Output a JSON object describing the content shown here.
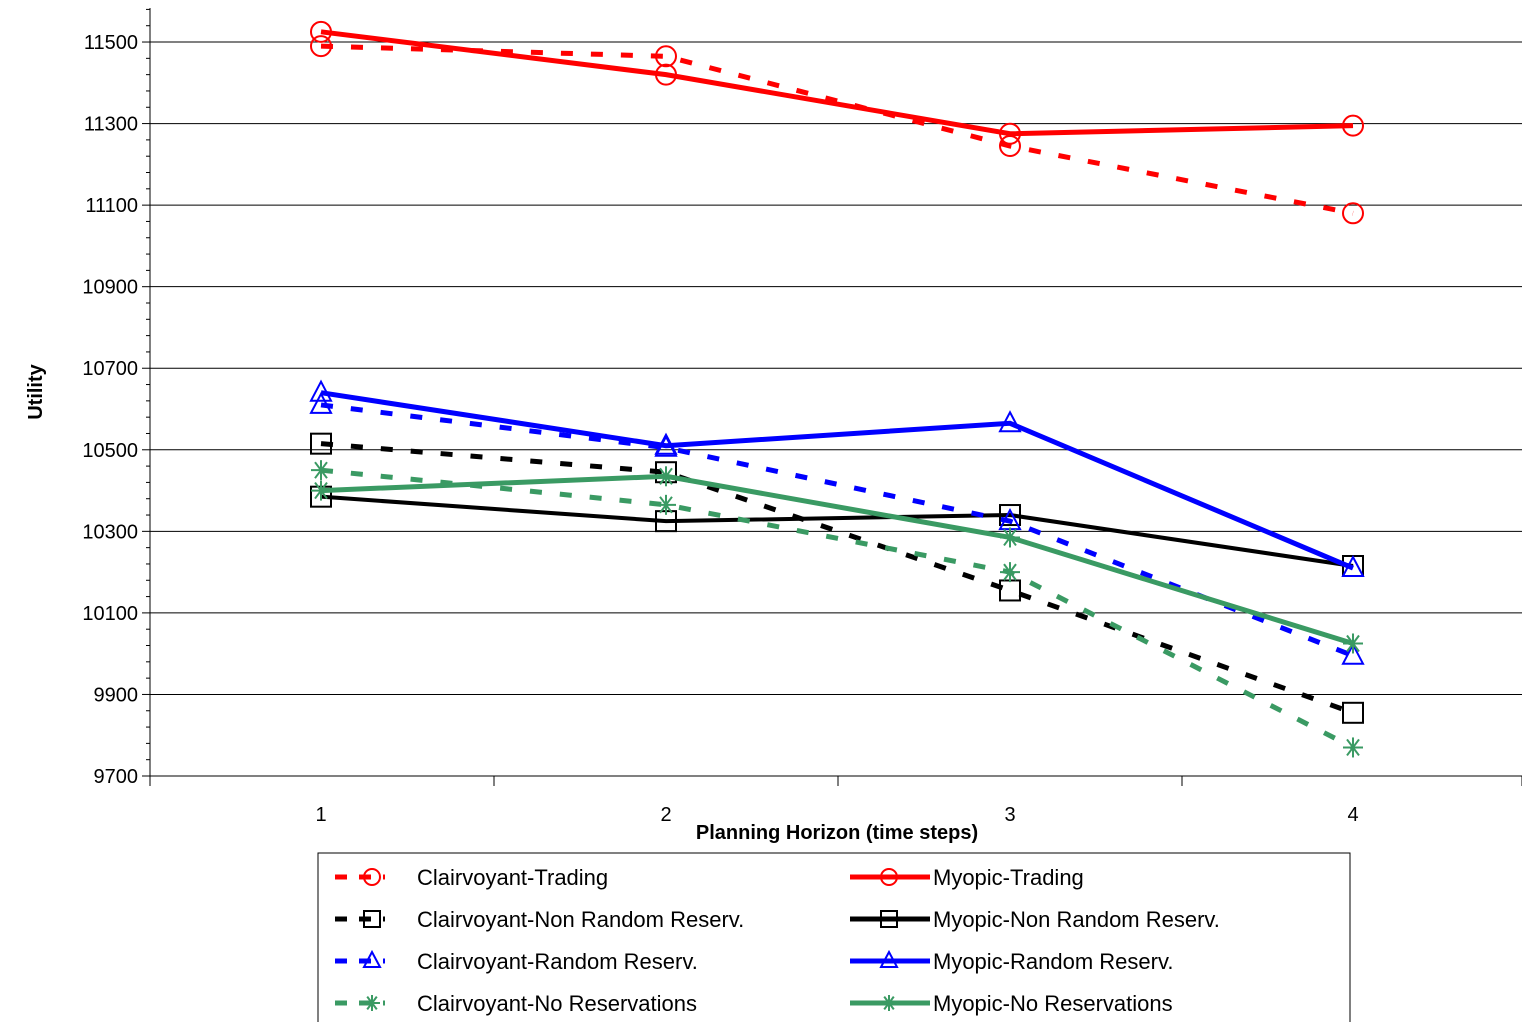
{
  "chart_data": {
    "type": "line",
    "title": "",
    "xlabel": "Planning Horizon (time steps)",
    "ylabel": "Utility",
    "categories": [
      "1",
      "2",
      "3",
      "4"
    ],
    "ylim": [
      9700,
      11600
    ],
    "yticks": [
      9700,
      9900,
      10100,
      10300,
      10500,
      10700,
      10900,
      11100,
      11300,
      11500
    ],
    "grid": true,
    "legend_position": "bottom",
    "series": [
      {
        "name": "Clairvoyant-Trading",
        "values": [
          11490,
          11465,
          11245,
          11080
        ],
        "color": "#ff0000",
        "style": "dashed",
        "marker": "circle"
      },
      {
        "name": "Myopic-Trading",
        "values": [
          11525,
          11420,
          11275,
          11295
        ],
        "color": "#ff0000",
        "style": "solid",
        "marker": "circle"
      },
      {
        "name": "Clairvoyant-Non Random Reserv.",
        "values": [
          10515,
          10445,
          10155,
          9855
        ],
        "color": "#000000",
        "style": "dashed",
        "marker": "square"
      },
      {
        "name": "Myopic-Non Random Reserv.",
        "values": [
          10385,
          10325,
          10340,
          10215
        ],
        "color": "#000000",
        "style": "solid",
        "marker": "square"
      },
      {
        "name": "Clairvoyant-Random Reserv.",
        "values": [
          10610,
          10505,
          10325,
          9995
        ],
        "color": "#0000ff",
        "style": "dashed",
        "marker": "triangle"
      },
      {
        "name": "Myopic-Random Reserv.",
        "values": [
          10640,
          10510,
          10565,
          10210
        ],
        "color": "#0000ff",
        "style": "solid",
        "marker": "triangle"
      },
      {
        "name": "Clairvoyant-No Reservations",
        "values": [
          10450,
          10365,
          10200,
          9770
        ],
        "color": "#3a9a63",
        "style": "dashed",
        "marker": "asterisk"
      },
      {
        "name": "Myopic-No Reservations",
        "values": [
          10400,
          10435,
          10285,
          10025
        ],
        "color": "#3a9a63",
        "style": "solid",
        "marker": "asterisk"
      }
    ],
    "legend_order": [
      "Clairvoyant-Trading",
      "Myopic-Trading",
      "Clairvoyant-Non Random Reserv.",
      "Myopic-Non Random Reserv.",
      "Clairvoyant-Random Reserv.",
      "Myopic-Random Reserv.",
      "Clairvoyant-No Reservations",
      "Myopic-No Reservations"
    ]
  }
}
